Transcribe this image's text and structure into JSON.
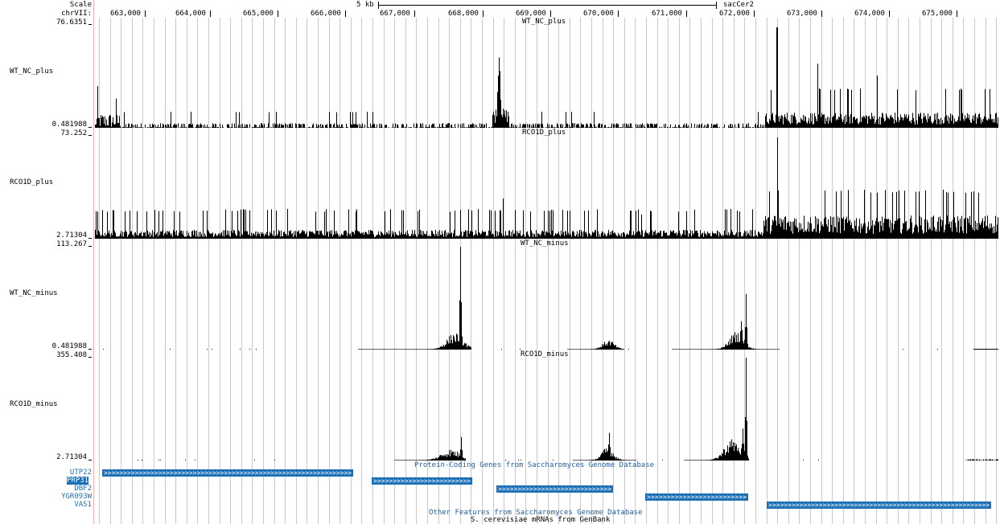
{
  "browser": {
    "scale_label": "Scale",
    "chrom_label": "chrVII:",
    "scale_bar_text": "5 kb",
    "assembly": "sacCer2",
    "positions": [
      "663,000",
      "664,000",
      "665,000",
      "666,000",
      "667,000",
      "668,000",
      "669,000",
      "670,000",
      "671,000",
      "672,000",
      "673,000",
      "674,000",
      "675,000"
    ],
    "colors": {
      "guide_line": "#c8c8dc",
      "left_edge": "#f2b0b0",
      "gene_fill": "#1b6fb7",
      "section_text": "#1f5f9f",
      "signal": "#000000"
    }
  },
  "tracks": [
    {
      "name": "WT_NC_plus",
      "max": "76.6351",
      "min": "0.481988"
    },
    {
      "name": "RCO1D_plus",
      "max": "73.252",
      "min": "2.71304"
    },
    {
      "name": "WT_NC_minus",
      "max": "113.267",
      "min": "0.481988"
    },
    {
      "name": "RCO1D_minus",
      "max": "355.408",
      "min": "2.71304"
    }
  ],
  "genes": {
    "section_title": "Protein-Coding Genes from Saccharomyces Genome Database",
    "items": [
      {
        "label": "UTP22",
        "selected": false
      },
      {
        "label": "PRP31",
        "selected": true
      },
      {
        "label": "DBF2",
        "selected": false
      },
      {
        "label": "YGR093W",
        "selected": false
      },
      {
        "label": "VAS1",
        "selected": false
      }
    ]
  },
  "other_features_title": "Other Features from Saccharomyces Genome Database",
  "mrna_title": "S. cerevisiae mRNAs from GenBank"
}
